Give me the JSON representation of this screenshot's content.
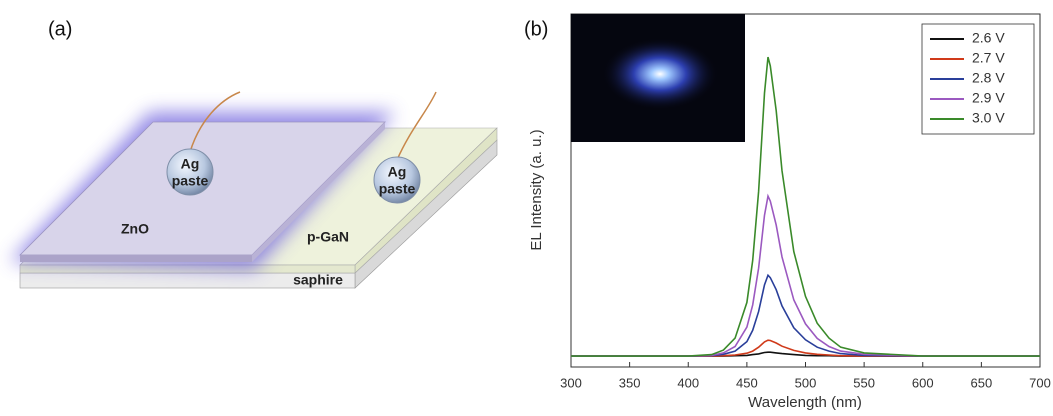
{
  "panel_a": {
    "label": "(a)",
    "layers": [
      "ZnO",
      "p-GaN",
      "saphire"
    ],
    "contacts": [
      [
        "Ag",
        "paste"
      ],
      [
        "Ag",
        "paste"
      ]
    ]
  },
  "chart_data": {
    "type": "line",
    "panel_label": "(b)",
    "x_label": "Wavelength (nm)",
    "y_label": "EL Intensity (a. u.)",
    "x": [
      300,
      350,
      400,
      420,
      430,
      440,
      450,
      455,
      460,
      465,
      468,
      470,
      475,
      480,
      490,
      500,
      510,
      520,
      530,
      550,
      600,
      650,
      700
    ],
    "series": [
      {
        "name": "2.6 V",
        "color": "#111111",
        "values": [
          3.1,
          3.1,
          3.1,
          3.1,
          3.1,
          3.2,
          3.3,
          3.5,
          3.7,
          4.1,
          4.2,
          4.2,
          4.0,
          3.8,
          3.5,
          3.3,
          3.2,
          3.2,
          3.1,
          3.1,
          3.1,
          3.1,
          3.1
        ]
      },
      {
        "name": "2.7 V",
        "color": "#d03a1a",
        "values": [
          3.1,
          3.1,
          3.1,
          3.1,
          3.2,
          3.4,
          3.9,
          4.5,
          5.6,
          7.1,
          7.6,
          7.5,
          6.8,
          5.9,
          4.7,
          4.0,
          3.6,
          3.4,
          3.2,
          3.1,
          3.1,
          3.1,
          3.1
        ]
      },
      {
        "name": "2.8 V",
        "color": "#2a3f9a",
        "values": [
          3.1,
          3.1,
          3.1,
          3.2,
          3.6,
          4.5,
          7.2,
          10.4,
          15.7,
          23.3,
          26.0,
          25.3,
          21.9,
          17.3,
          11.1,
          7.7,
          5.6,
          4.5,
          3.8,
          3.3,
          3.1,
          3.1,
          3.1
        ]
      },
      {
        "name": "2.9 V",
        "color": "#9b59c0",
        "values": [
          3.1,
          3.1,
          3.1,
          3.3,
          4.0,
          5.8,
          11.3,
          17.6,
          28.0,
          43.0,
          48.4,
          47.0,
          40.2,
          31.2,
          19.0,
          12.2,
          8.1,
          5.8,
          4.5,
          3.6,
          3.1,
          3.1,
          3.1
        ]
      },
      {
        "name": "3.0 V",
        "color": "#3a8a2a",
        "values": [
          3.1,
          3.1,
          3.1,
          3.5,
          4.8,
          8.2,
          18.3,
          30.2,
          49.7,
          77.6,
          87.8,
          85.3,
          72.6,
          55.6,
          32.7,
          20.0,
          12.4,
          8.2,
          5.6,
          4.0,
          3.1,
          3.1,
          3.1
        ]
      }
    ],
    "xlim": [
      300,
      700
    ],
    "xticks": [
      300,
      350,
      400,
      450,
      500,
      550,
      600,
      650,
      700
    ],
    "ylim": [
      0,
      100
    ],
    "grid": false,
    "legend": "upper-right"
  }
}
